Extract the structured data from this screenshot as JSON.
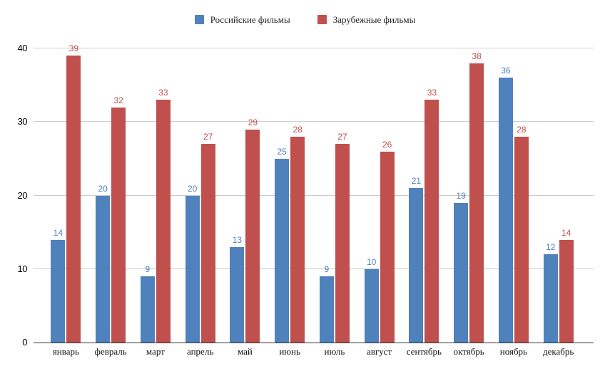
{
  "chart_data": {
    "type": "bar",
    "title": "",
    "categories": [
      "январь",
      "февраль",
      "март",
      "апрель",
      "май",
      "июнь",
      "июль",
      "август",
      "сентябрь",
      "октябрь",
      "ноябрь",
      "декабрь"
    ],
    "series": [
      {
        "name": "Российские фильмы",
        "color": "#4f81bd",
        "values": [
          14,
          20,
          9,
          20,
          13,
          25,
          9,
          10,
          21,
          19,
          36,
          12
        ]
      },
      {
        "name": "Зарубежные фильмы",
        "color": "#c0504d",
        "values": [
          39,
          32,
          33,
          27,
          29,
          28,
          27,
          26,
          33,
          38,
          28,
          14
        ]
      }
    ],
    "ylim": [
      0,
      40
    ],
    "yticks": [
      0,
      10,
      20,
      30,
      40
    ],
    "grid": true,
    "legend_position": "top",
    "data_labels": true
  }
}
